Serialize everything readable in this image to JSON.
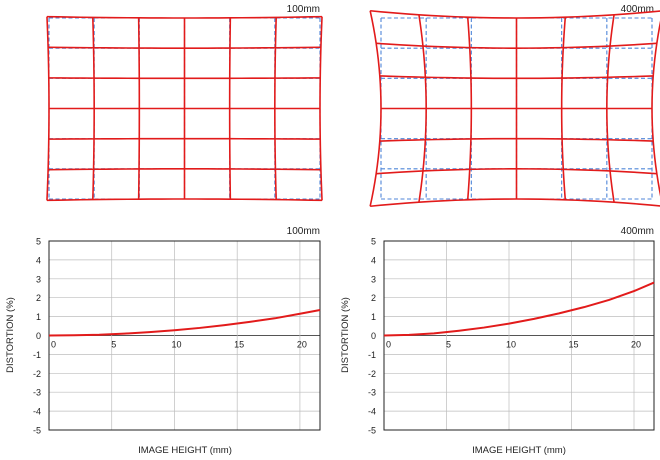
{
  "colors": {
    "measured": "#e21b1b",
    "ideal": "#4f86d9",
    "grid": "#bdbdbd",
    "frame": "#222222"
  },
  "grid_panels": [
    {
      "label": "100mm",
      "rows": 6,
      "cols": 6,
      "distortion": "slight"
    },
    {
      "label": "400mm",
      "rows": 6,
      "cols": 6,
      "distortion": "pincushion"
    }
  ],
  "chart_data": [
    {
      "type": "line",
      "title": "100mm",
      "xlabel": "IMAGE HEIGHT (mm)",
      "ylabel": "DISTORTION (%)",
      "xlim": [
        0,
        21.6
      ],
      "ylim": [
        -5,
        5
      ],
      "xticks": [
        "0",
        "5",
        "10",
        "15",
        "20"
      ],
      "yticks": [
        "5",
        "4",
        "3",
        "2",
        "1",
        "0",
        "-1",
        "-2",
        "-3",
        "-4",
        "-5"
      ],
      "grid": true,
      "series": [
        {
          "x": [
            0,
            2,
            4,
            6,
            8,
            10,
            12,
            14,
            16,
            18,
            20,
            21.6
          ],
          "values": [
            0,
            0.01,
            0.04,
            0.1,
            0.18,
            0.28,
            0.4,
            0.55,
            0.72,
            0.91,
            1.15,
            1.35
          ]
        }
      ]
    },
    {
      "type": "line",
      "title": "400mm",
      "xlabel": "IMAGE HEIGHT (mm)",
      "ylabel": "DISTORTION (%)",
      "xlim": [
        0,
        21.6
      ],
      "ylim": [
        -5,
        5
      ],
      "xticks": [
        "0",
        "5",
        "10",
        "15",
        "20"
      ],
      "yticks": [
        "5",
        "4",
        "3",
        "2",
        "1",
        "0",
        "-1",
        "-2",
        "-3",
        "-4",
        "-5"
      ],
      "grid": true,
      "series": [
        {
          "x": [
            0,
            2,
            4,
            6,
            8,
            10,
            12,
            14,
            16,
            18,
            20,
            21.6
          ],
          "values": [
            0,
            0.03,
            0.11,
            0.25,
            0.42,
            0.63,
            0.88,
            1.17,
            1.5,
            1.88,
            2.35,
            2.8
          ]
        }
      ]
    }
  ]
}
